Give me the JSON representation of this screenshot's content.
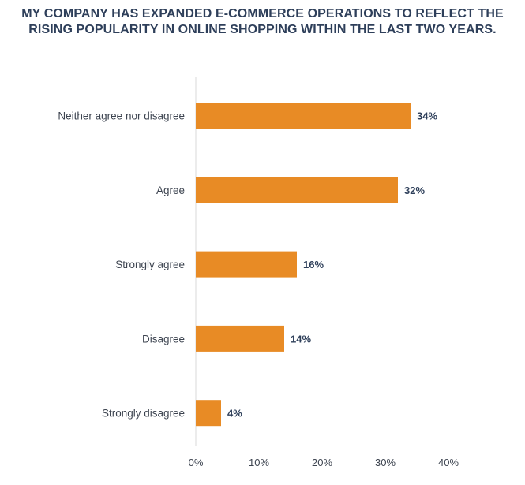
{
  "chart_data": {
    "type": "bar",
    "orientation": "horizontal",
    "title_lines": [
      "MY COMPANY HAS EXPANDED E-COMMERCE OPERATIONS TO REFLECT THE",
      "RISING POPULARITY IN ONLINE SHOPPING WITHIN THE LAST TWO YEARS."
    ],
    "categories": [
      "Neither agree nor disagree",
      "Agree",
      "Strongly agree",
      "Disagree",
      "Strongly disagree"
    ],
    "values": [
      34,
      32,
      16,
      14,
      4
    ],
    "value_labels": [
      "34%",
      "32%",
      "16%",
      "14%",
      "4%"
    ],
    "xlim": [
      0,
      40
    ],
    "x_ticks": [
      0,
      10,
      20,
      30,
      40
    ],
    "x_tick_labels": [
      "0%",
      "10%",
      "20%",
      "30%",
      "40%"
    ],
    "bar_color": "#e88b25",
    "axis_color": "#d9d9d9",
    "title_color": "#2e3f5a",
    "grid": false
  }
}
